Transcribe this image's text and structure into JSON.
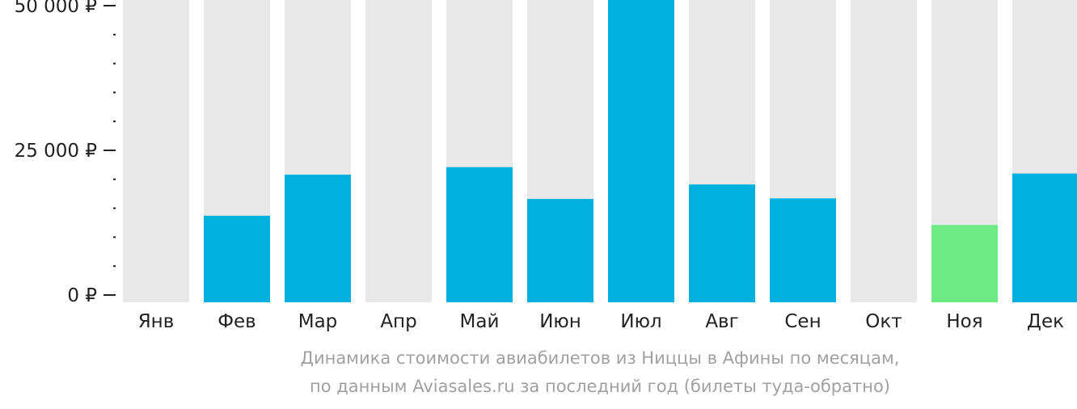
{
  "chart_data": {
    "type": "bar",
    "title": "",
    "xlabel": "",
    "ylabel": "",
    "ylim": [
      0,
      50000
    ],
    "y_ticks": [
      {
        "value": 0,
        "label": "0 ₽"
      },
      {
        "value": 25000,
        "label": "25 000 ₽"
      },
      {
        "value": 50000,
        "label": "50 000 ₽"
      }
    ],
    "categories": [
      "Янв",
      "Фев",
      "Мар",
      "Апр",
      "Май",
      "Июн",
      "Июл",
      "Авг",
      "Сен",
      "Окт",
      "Ноя",
      "Дек"
    ],
    "values": [
      null,
      13700,
      20800,
      null,
      22100,
      16600,
      51800,
      19100,
      16700,
      null,
      12100,
      21000
    ],
    "highlight_category": "Ноя",
    "grid": false,
    "legend": "none"
  },
  "caption": {
    "line1": "Динамика стоимости авиабилетов из Ниццы в Афины по месяцам,",
    "line2": "по данным Aviasales.ru за последний год (билеты туда-обратно)"
  },
  "colors": {
    "bar": "#00b0dd",
    "highlight": "#6ceb85",
    "background_column": "#e8e8e8",
    "axis_text": "#222222",
    "caption_text": "#a0a0a0"
  }
}
